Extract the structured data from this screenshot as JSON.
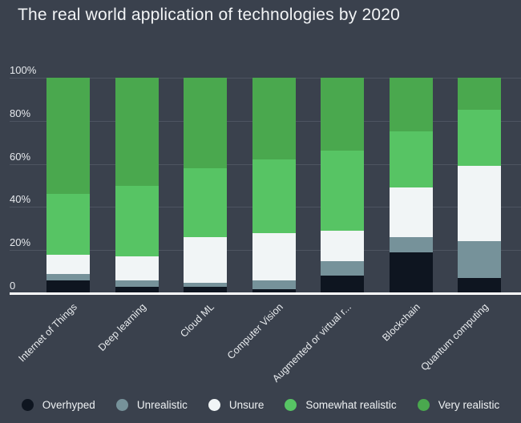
{
  "title": "The real world application of technologies by 2020",
  "colors": {
    "background": "#3a414d",
    "gridline": "#4d5461",
    "axis_line": "#ffffff",
    "title_text": "#f2f4f6",
    "tick_text": "#e6e9ed",
    "legend_text": "#eef1f3"
  },
  "chart_data": {
    "type": "bar",
    "variant": "stacked-percent-column",
    "title": "The real world application of technologies by 2020",
    "categories": [
      "Internet of Things",
      "Deep learning",
      "Cloud ML",
      "Computer Vision",
      "Augmented or virtual r...",
      "Blockchain",
      "Quantum computing"
    ],
    "series": [
      {
        "name": "Overhyped",
        "color": "#0e1520",
        "values": [
          6,
          3,
          3,
          2,
          8,
          19,
          7
        ]
      },
      {
        "name": "Unrealistic",
        "color": "#76929a",
        "values": [
          3,
          3,
          2,
          4,
          7,
          7,
          17
        ]
      },
      {
        "name": "Unsure",
        "color": "#f1f5f6",
        "values": [
          9,
          11,
          21,
          22,
          14,
          23,
          35
        ]
      },
      {
        "name": "Somewhat realistic",
        "color": "#57c464",
        "values": [
          28,
          33,
          32,
          34,
          37,
          26,
          26
        ]
      },
      {
        "name": "Very realistic",
        "color": "#4aa84e",
        "values": [
          54,
          50,
          42,
          38,
          34,
          25,
          15
        ]
      }
    ],
    "y_ticks": [
      {
        "value": 0,
        "label": "0"
      },
      {
        "value": 20,
        "label": "20%"
      },
      {
        "value": 40,
        "label": "40%"
      },
      {
        "value": 60,
        "label": "60%"
      },
      {
        "value": 80,
        "label": "80%"
      },
      {
        "value": 100,
        "label": "100%"
      }
    ],
    "ylim": [
      0,
      100
    ],
    "xlabel": "",
    "ylabel": "",
    "grid": true,
    "legend_position": "bottom",
    "x_label_rotation": -45
  }
}
